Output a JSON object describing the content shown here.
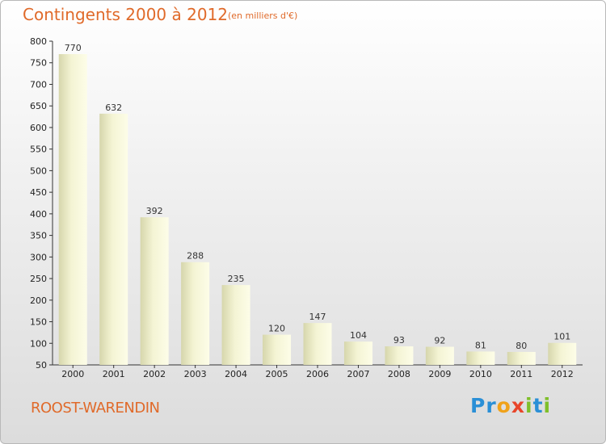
{
  "header": {
    "title": "Contingents 2000 à 2012",
    "subtitle": "(en milliers d'€)"
  },
  "footer": {
    "commune": "ROOST-WARENDIN",
    "logo_text": "Proxiti"
  },
  "colors": {
    "title": "#e06a2a",
    "bar_light": "#fbfbe2",
    "bar_dark": "#d8d8b0"
  },
  "chart_data": {
    "type": "bar",
    "categories": [
      "2000",
      "2001",
      "2002",
      "2003",
      "2004",
      "2005",
      "2006",
      "2007",
      "2008",
      "2009",
      "2010",
      "2011",
      "2012"
    ],
    "values": [
      770,
      632,
      392,
      288,
      235,
      120,
      147,
      104,
      93,
      92,
      81,
      80,
      101
    ],
    "title": "Contingents 2000 à 2012",
    "subtitle": "(en milliers d'€)",
    "xlabel": "",
    "ylabel": "",
    "ylim": [
      50,
      800
    ],
    "yticks": [
      50,
      100,
      150,
      200,
      250,
      300,
      350,
      400,
      450,
      500,
      550,
      600,
      650,
      700,
      750,
      800
    ],
    "grid": false,
    "legend": "none"
  }
}
